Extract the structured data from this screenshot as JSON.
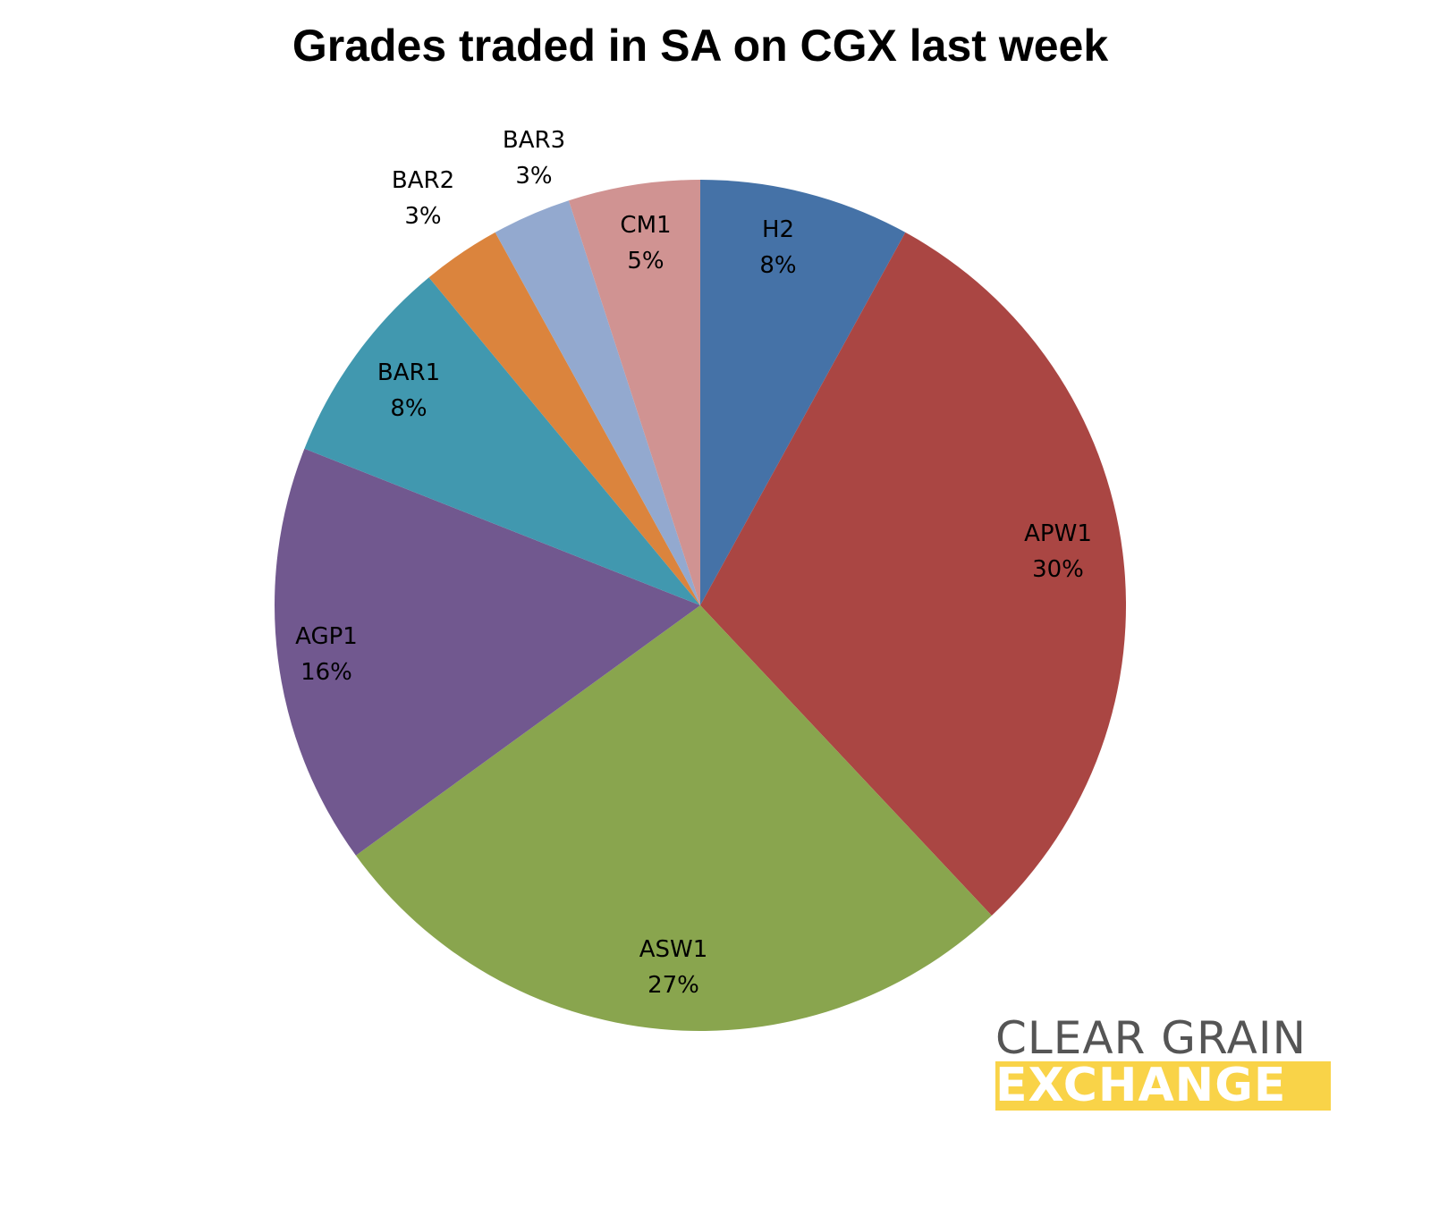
{
  "chart_data": {
    "type": "pie",
    "title": "Grades traded in SA on CGX last week",
    "start": "top",
    "direction": "clockwise",
    "slices": [
      {
        "label": "H2",
        "value": 8,
        "display": "8%",
        "color": "#4572a7"
      },
      {
        "label": "APW1",
        "value": 30,
        "display": "30%",
        "color": "#aa4643"
      },
      {
        "label": "ASW1",
        "value": 27,
        "display": "27%",
        "color": "#89a54e"
      },
      {
        "label": "AGP1",
        "value": 16,
        "display": "16%",
        "color": "#71588f"
      },
      {
        "label": "BAR1",
        "value": 8,
        "display": "8%",
        "color": "#4198af"
      },
      {
        "label": "BAR2",
        "value": 3,
        "display": "3%",
        "color": "#db843d"
      },
      {
        "label": "BAR3",
        "value": 3,
        "display": "3%",
        "color": "#93a9cf"
      },
      {
        "label": "CM1",
        "value": 5,
        "display": "5%",
        "color": "#d09392"
      }
    ]
  },
  "logo": {
    "line1": "CLEAR GRAIN",
    "line2": "EXCHANGE",
    "accent": "#f9d348"
  }
}
